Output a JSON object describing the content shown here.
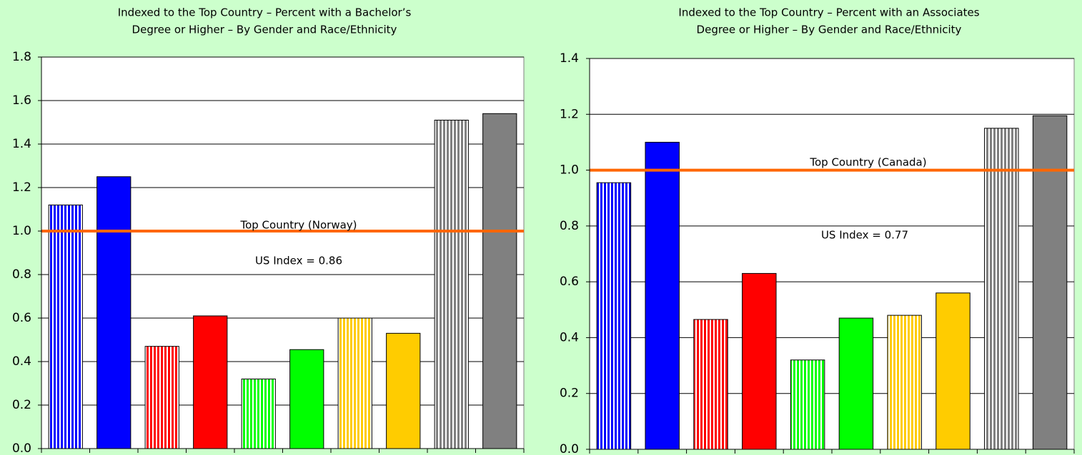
{
  "chart_data": [
    {
      "type": "bar",
      "title": [
        "Indexed to the Top Country – Percent with a Bachelor’s",
        "Degree or Higher – By Gender and Race/Ethnicity"
      ],
      "categories": [
        null,
        null,
        null,
        null,
        null,
        null,
        null,
        null,
        null,
        null
      ],
      "values": [
        1.12,
        1.25,
        0.47,
        0.61,
        0.32,
        0.455,
        0.6,
        0.53,
        1.51,
        1.54
      ],
      "colors": [
        "#0000ff",
        "#0000ff",
        "#ff0000",
        "#ff0000",
        "#00ff00",
        "#00ff00",
        "#ffcc00",
        "#ffcc00",
        "#808080",
        "#808080"
      ],
      "hatch": [
        true,
        false,
        true,
        false,
        true,
        false,
        true,
        false,
        true,
        false
      ],
      "ylim": [
        0,
        1.8
      ],
      "yticks": [
        {
          "value": 0,
          "label": "0.0"
        },
        0.2,
        0.4,
        0.6,
        0.8,
        {
          "value": 1,
          "label": "1.0"
        },
        1.2,
        1.4,
        1.6,
        1.8
      ],
      "grid": true,
      "reference_line": {
        "value": 1,
        "color": "#ff6600"
      },
      "annotations": [
        "Top Country (Norway)",
        "US Index = 0.86"
      ]
    },
    {
      "type": "bar",
      "title": [
        "Indexed to the Top Country – Percent with an Associates",
        "Degree or Higher – By Gender and Race/Ethnicity"
      ],
      "categories": [
        null,
        null,
        null,
        null,
        null,
        null,
        null,
        null,
        null,
        null
      ],
      "values": [
        0.955,
        1.1,
        0.465,
        0.63,
        0.32,
        0.47,
        0.48,
        0.56,
        1.15,
        1.195
      ],
      "colors": [
        "#0000ff",
        "#0000ff",
        "#ff0000",
        "#ff0000",
        "#00ff00",
        "#00ff00",
        "#ffcc00",
        "#ffcc00",
        "#808080",
        "#808080"
      ],
      "hatch": [
        true,
        false,
        true,
        false,
        true,
        false,
        true,
        false,
        true,
        false
      ],
      "ylim": [
        0,
        1.4
      ],
      "yticks": [
        {
          "value": 0,
          "label": "0.0"
        },
        0.2,
        0.4,
        0.6,
        0.8,
        {
          "value": 1,
          "label": "1.0"
        },
        1.2,
        1.4
      ],
      "grid": true,
      "reference_line": {
        "value": 1,
        "color": "#ff6600"
      },
      "annotations": [
        "Top Country (Canada)",
        "US Index = 0.77"
      ]
    }
  ]
}
